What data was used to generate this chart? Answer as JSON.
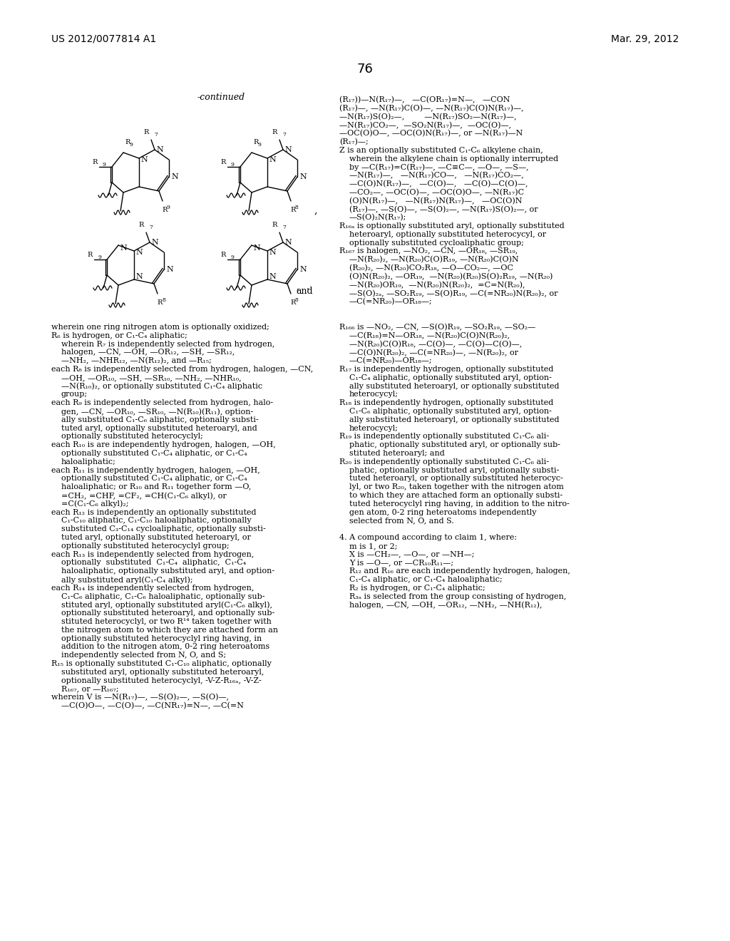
{
  "header_left": "US 2012/0077814 A1",
  "header_right": "Mar. 29, 2012",
  "page_number": "76",
  "bg_color": "#ffffff",
  "text_color": "#000000"
}
